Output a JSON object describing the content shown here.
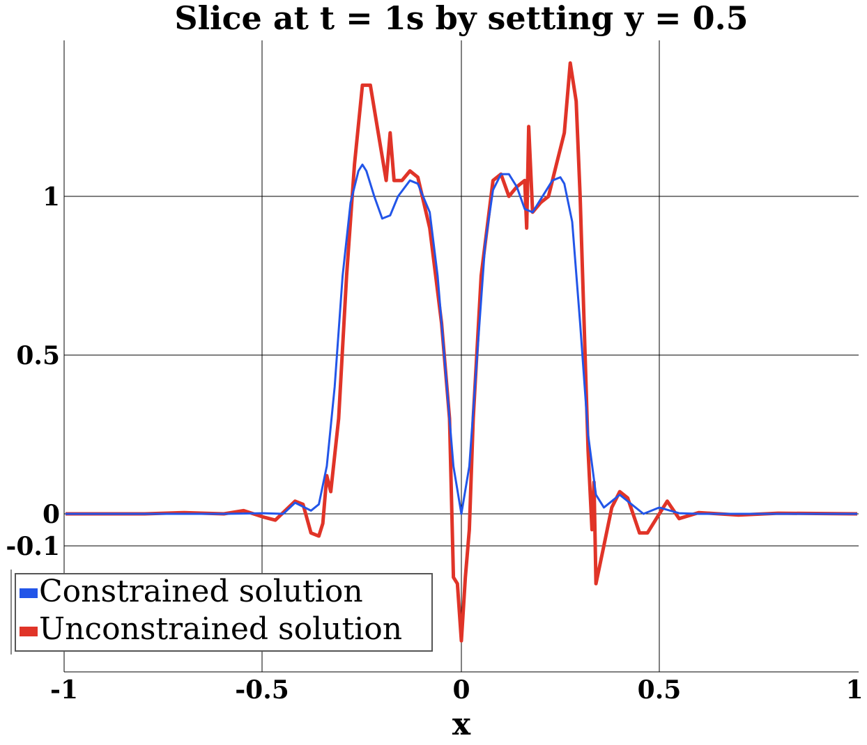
{
  "chart_data": {
    "type": "line",
    "title": "Slice at t = 1s by setting y = 0.5",
    "xlabel": "x",
    "ylabel": "",
    "xlim": [
      -1,
      1
    ],
    "ylim": [
      -0.5,
      1.5
    ],
    "grid": true,
    "legend_position": "bottom-left",
    "x_ticks": [
      "-1",
      "-0.5",
      "0",
      "0.5",
      "1"
    ],
    "y_ticks": [
      "1",
      "0.5",
      "0",
      "-0.1"
    ],
    "series": [
      {
        "name": "Constrained solution",
        "color": "#2255e8",
        "points": [
          [
            -1.0,
            0.0
          ],
          [
            -0.6,
            0.0
          ],
          [
            -0.5,
            0.002
          ],
          [
            -0.45,
            0.0
          ],
          [
            -0.42,
            0.035
          ],
          [
            -0.38,
            0.01
          ],
          [
            -0.36,
            0.03
          ],
          [
            -0.34,
            0.15
          ],
          [
            -0.32,
            0.4
          ],
          [
            -0.3,
            0.75
          ],
          [
            -0.28,
            0.98
          ],
          [
            -0.26,
            1.08
          ],
          [
            -0.25,
            1.1
          ],
          [
            -0.24,
            1.08
          ],
          [
            -0.22,
            1.0
          ],
          [
            -0.2,
            0.93
          ],
          [
            -0.18,
            0.94
          ],
          [
            -0.16,
            1.0
          ],
          [
            -0.13,
            1.05
          ],
          [
            -0.11,
            1.04
          ],
          [
            -0.08,
            0.95
          ],
          [
            -0.06,
            0.75
          ],
          [
            -0.04,
            0.45
          ],
          [
            -0.02,
            0.15
          ],
          [
            0.0,
            0.0
          ],
          [
            0.02,
            0.15
          ],
          [
            0.04,
            0.5
          ],
          [
            0.06,
            0.85
          ],
          [
            0.08,
            1.02
          ],
          [
            0.1,
            1.07
          ],
          [
            0.12,
            1.07
          ],
          [
            0.14,
            1.03
          ],
          [
            0.16,
            0.96
          ],
          [
            0.18,
            0.95
          ],
          [
            0.2,
            0.99
          ],
          [
            0.23,
            1.05
          ],
          [
            0.25,
            1.06
          ],
          [
            0.26,
            1.04
          ],
          [
            0.28,
            0.92
          ],
          [
            0.3,
            0.6
          ],
          [
            0.32,
            0.25
          ],
          [
            0.34,
            0.06
          ],
          [
            0.36,
            0.02
          ],
          [
            0.38,
            0.04
          ],
          [
            0.4,
            0.06
          ],
          [
            0.43,
            0.03
          ],
          [
            0.46,
            0.0
          ],
          [
            0.5,
            0.02
          ],
          [
            0.55,
            0.002
          ],
          [
            0.6,
            0.0
          ],
          [
            1.0,
            0.0
          ]
        ]
      },
      {
        "name": "Unconstrained solution",
        "color": "#e03428",
        "points": [
          [
            -1.0,
            0.0
          ],
          [
            -0.8,
            0.0
          ],
          [
            -0.7,
            0.004
          ],
          [
            -0.6,
            0.0
          ],
          [
            -0.55,
            0.01
          ],
          [
            -0.5,
            -0.01
          ],
          [
            -0.47,
            -0.02
          ],
          [
            -0.42,
            0.04
          ],
          [
            -0.4,
            0.03
          ],
          [
            -0.38,
            -0.06
          ],
          [
            -0.36,
            -0.07
          ],
          [
            -0.35,
            -0.03
          ],
          [
            -0.34,
            0.12
          ],
          [
            -0.33,
            0.07
          ],
          [
            -0.31,
            0.3
          ],
          [
            -0.29,
            0.75
          ],
          [
            -0.27,
            1.1
          ],
          [
            -0.25,
            1.35
          ],
          [
            -0.23,
            1.35
          ],
          [
            -0.21,
            1.2
          ],
          [
            -0.19,
            1.05
          ],
          [
            -0.18,
            1.2
          ],
          [
            -0.17,
            1.05
          ],
          [
            -0.15,
            1.05
          ],
          [
            -0.13,
            1.08
          ],
          [
            -0.11,
            1.06
          ],
          [
            -0.08,
            0.9
          ],
          [
            -0.05,
            0.6
          ],
          [
            -0.03,
            0.3
          ],
          [
            -0.02,
            -0.2
          ],
          [
            -0.01,
            -0.22
          ],
          [
            0.0,
            -0.4
          ],
          [
            0.01,
            -0.2
          ],
          [
            0.02,
            -0.05
          ],
          [
            0.03,
            0.3
          ],
          [
            0.05,
            0.75
          ],
          [
            0.08,
            1.05
          ],
          [
            0.1,
            1.07
          ],
          [
            0.12,
            1.0
          ],
          [
            0.14,
            1.03
          ],
          [
            0.16,
            1.05
          ],
          [
            0.165,
            0.9
          ],
          [
            0.17,
            1.22
          ],
          [
            0.18,
            0.95
          ],
          [
            0.2,
            0.98
          ],
          [
            0.22,
            1.0
          ],
          [
            0.24,
            1.1
          ],
          [
            0.26,
            1.2
          ],
          [
            0.275,
            1.42
          ],
          [
            0.29,
            1.3
          ],
          [
            0.3,
            1.0
          ],
          [
            0.31,
            0.6
          ],
          [
            0.32,
            0.2
          ],
          [
            0.33,
            -0.05
          ],
          [
            0.335,
            0.1
          ],
          [
            0.34,
            -0.22
          ],
          [
            0.36,
            -0.1
          ],
          [
            0.38,
            0.02
          ],
          [
            0.4,
            0.07
          ],
          [
            0.42,
            0.05
          ],
          [
            0.45,
            -0.06
          ],
          [
            0.47,
            -0.06
          ],
          [
            0.5,
            0.0
          ],
          [
            0.52,
            0.04
          ],
          [
            0.55,
            -0.015
          ],
          [
            0.6,
            0.004
          ],
          [
            0.7,
            -0.004
          ],
          [
            0.8,
            0.002
          ],
          [
            1.0,
            0.0
          ]
        ]
      }
    ]
  }
}
